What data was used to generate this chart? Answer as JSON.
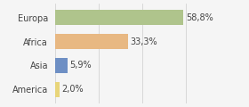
{
  "categories": [
    "Europa",
    "Africa",
    "Asia",
    "America"
  ],
  "values": [
    58.8,
    33.3,
    5.9,
    2.0
  ],
  "labels": [
    "58,8%",
    "33,3%",
    "5,9%",
    "2,0%"
  ],
  "bar_colors": [
    "#afc48c",
    "#e8b882",
    "#6e8fc4",
    "#e8d57a"
  ],
  "background_color": "#f5f5f5",
  "xlim": [
    0,
    75
  ],
  "label_fontsize": 7,
  "category_fontsize": 7,
  "bar_height": 0.65,
  "grid_color": "#cccccc"
}
